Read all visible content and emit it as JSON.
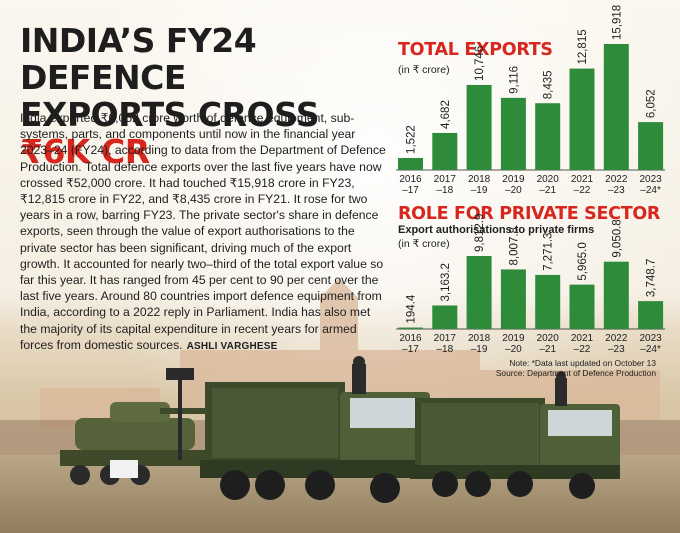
{
  "headline": {
    "line1": "INDIA’S FY24 DEFENCE",
    "line2_prefix": "EXPORTS CROSS ",
    "line2_highlight": "₹6K CR"
  },
  "article": {
    "body": "India exported ₹6,052 crore worth of defence equipment, sub-systems, parts, and components until now in the financial year 2023–24 (FY24), according to data from the Department of Defence Production. Total defence exports over the last five years have now crossed ₹52,000 crore. It had touched ₹15,918 crore in FY23, ₹12,815 crore in FY22, and ₹8,435 crore in FY21. It rose for two years in a row, barring FY23. The private sector's share in defence exports, seen through the value of export authorisations to the private sector has been significant, driving much of the export growth. It accounted for nearly two–third of the total export value so far this year. It has ranged from 45 per cent to 90 per cent over the last five years.  Around 80 countries import defence equipment from India, according to a 2022 reply in Parliament. India has also met the majority of its capital expenditure in recent years for armed forces from domestic sources.",
    "byline": "ASHLI VARGHESE"
  },
  "chart_data": [
    {
      "type": "bar",
      "title": "TOTAL EXPORTS",
      "ylabel": "(in ₹ crore)",
      "categories": [
        [
          "2016",
          "–17"
        ],
        [
          "2017",
          "–18"
        ],
        [
          "2018",
          "–19"
        ],
        [
          "2019",
          "–20"
        ],
        [
          "2020",
          "–21"
        ],
        [
          "2021",
          "–22"
        ],
        [
          "2022",
          "–23"
        ],
        [
          "2023",
          "–24*"
        ]
      ],
      "values": [
        1522,
        4682,
        10746,
        9116,
        8435,
        12815,
        15918,
        6052
      ],
      "labels": [
        "1,522",
        "4,682",
        "10,746",
        "9,116",
        "8,435",
        "12,815",
        "15,918",
        "6,052"
      ],
      "color": "#2e8b3a"
    },
    {
      "type": "bar",
      "title": "ROLE FOR PRIVATE SECTOR",
      "subtitle": "Export authorisations to private firms",
      "ylabel": "(in ₹ crore)",
      "categories": [
        [
          "2016",
          "–17"
        ],
        [
          "2017",
          "–18"
        ],
        [
          "2018",
          "–19"
        ],
        [
          "2019",
          "–20"
        ],
        [
          "2020",
          "–21"
        ],
        [
          "2021",
          "–22"
        ],
        [
          "2022",
          "–23"
        ],
        [
          "2023",
          "–24*"
        ]
      ],
      "values": [
        194.4,
        3163.2,
        9812.9,
        8007.8,
        7271.3,
        5965.0,
        9050.8,
        3748.7
      ],
      "labels": [
        "194.4",
        "3,163.2",
        "9,812.9",
        "8,007.8",
        "7,271.3",
        "5,965.0",
        "9,050.8",
        "3,748.7"
      ],
      "color": "#2e8b3a"
    }
  ],
  "notes": {
    "line1": "Note: *Data last updated on October 13",
    "line2": "Source: Department of Defence Production"
  }
}
